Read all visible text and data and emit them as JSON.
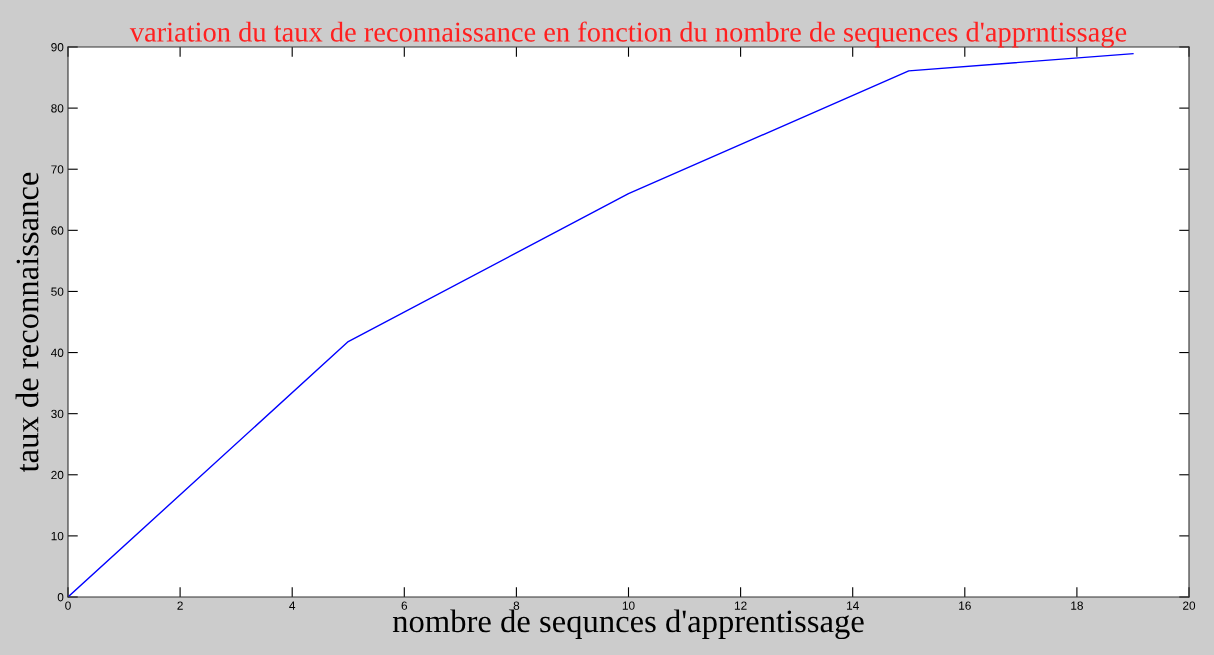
{
  "chart_data": {
    "type": "line",
    "title": "variation du taux de reconnaissance en fonction du nombre de sequences d'apprntissage",
    "xlabel": "nombre de sequnces d'apprentissage",
    "ylabel": "taux de reconnaissance",
    "x": [
      0,
      5,
      10,
      15,
      19
    ],
    "series": [
      {
        "color": "#0000ff",
        "values": [
          0,
          41.8,
          66,
          86.1,
          88.9
        ]
      }
    ],
    "xlim": [
      0,
      20
    ],
    "ylim": [
      0,
      90
    ],
    "xticks": [
      0,
      2,
      4,
      6,
      8,
      10,
      12,
      14,
      16,
      18,
      20
    ],
    "yticks": [
      0,
      10,
      20,
      30,
      40,
      50,
      60,
      70,
      80,
      90
    ],
    "grid": false,
    "marker": "none",
    "line_style": "solid"
  }
}
